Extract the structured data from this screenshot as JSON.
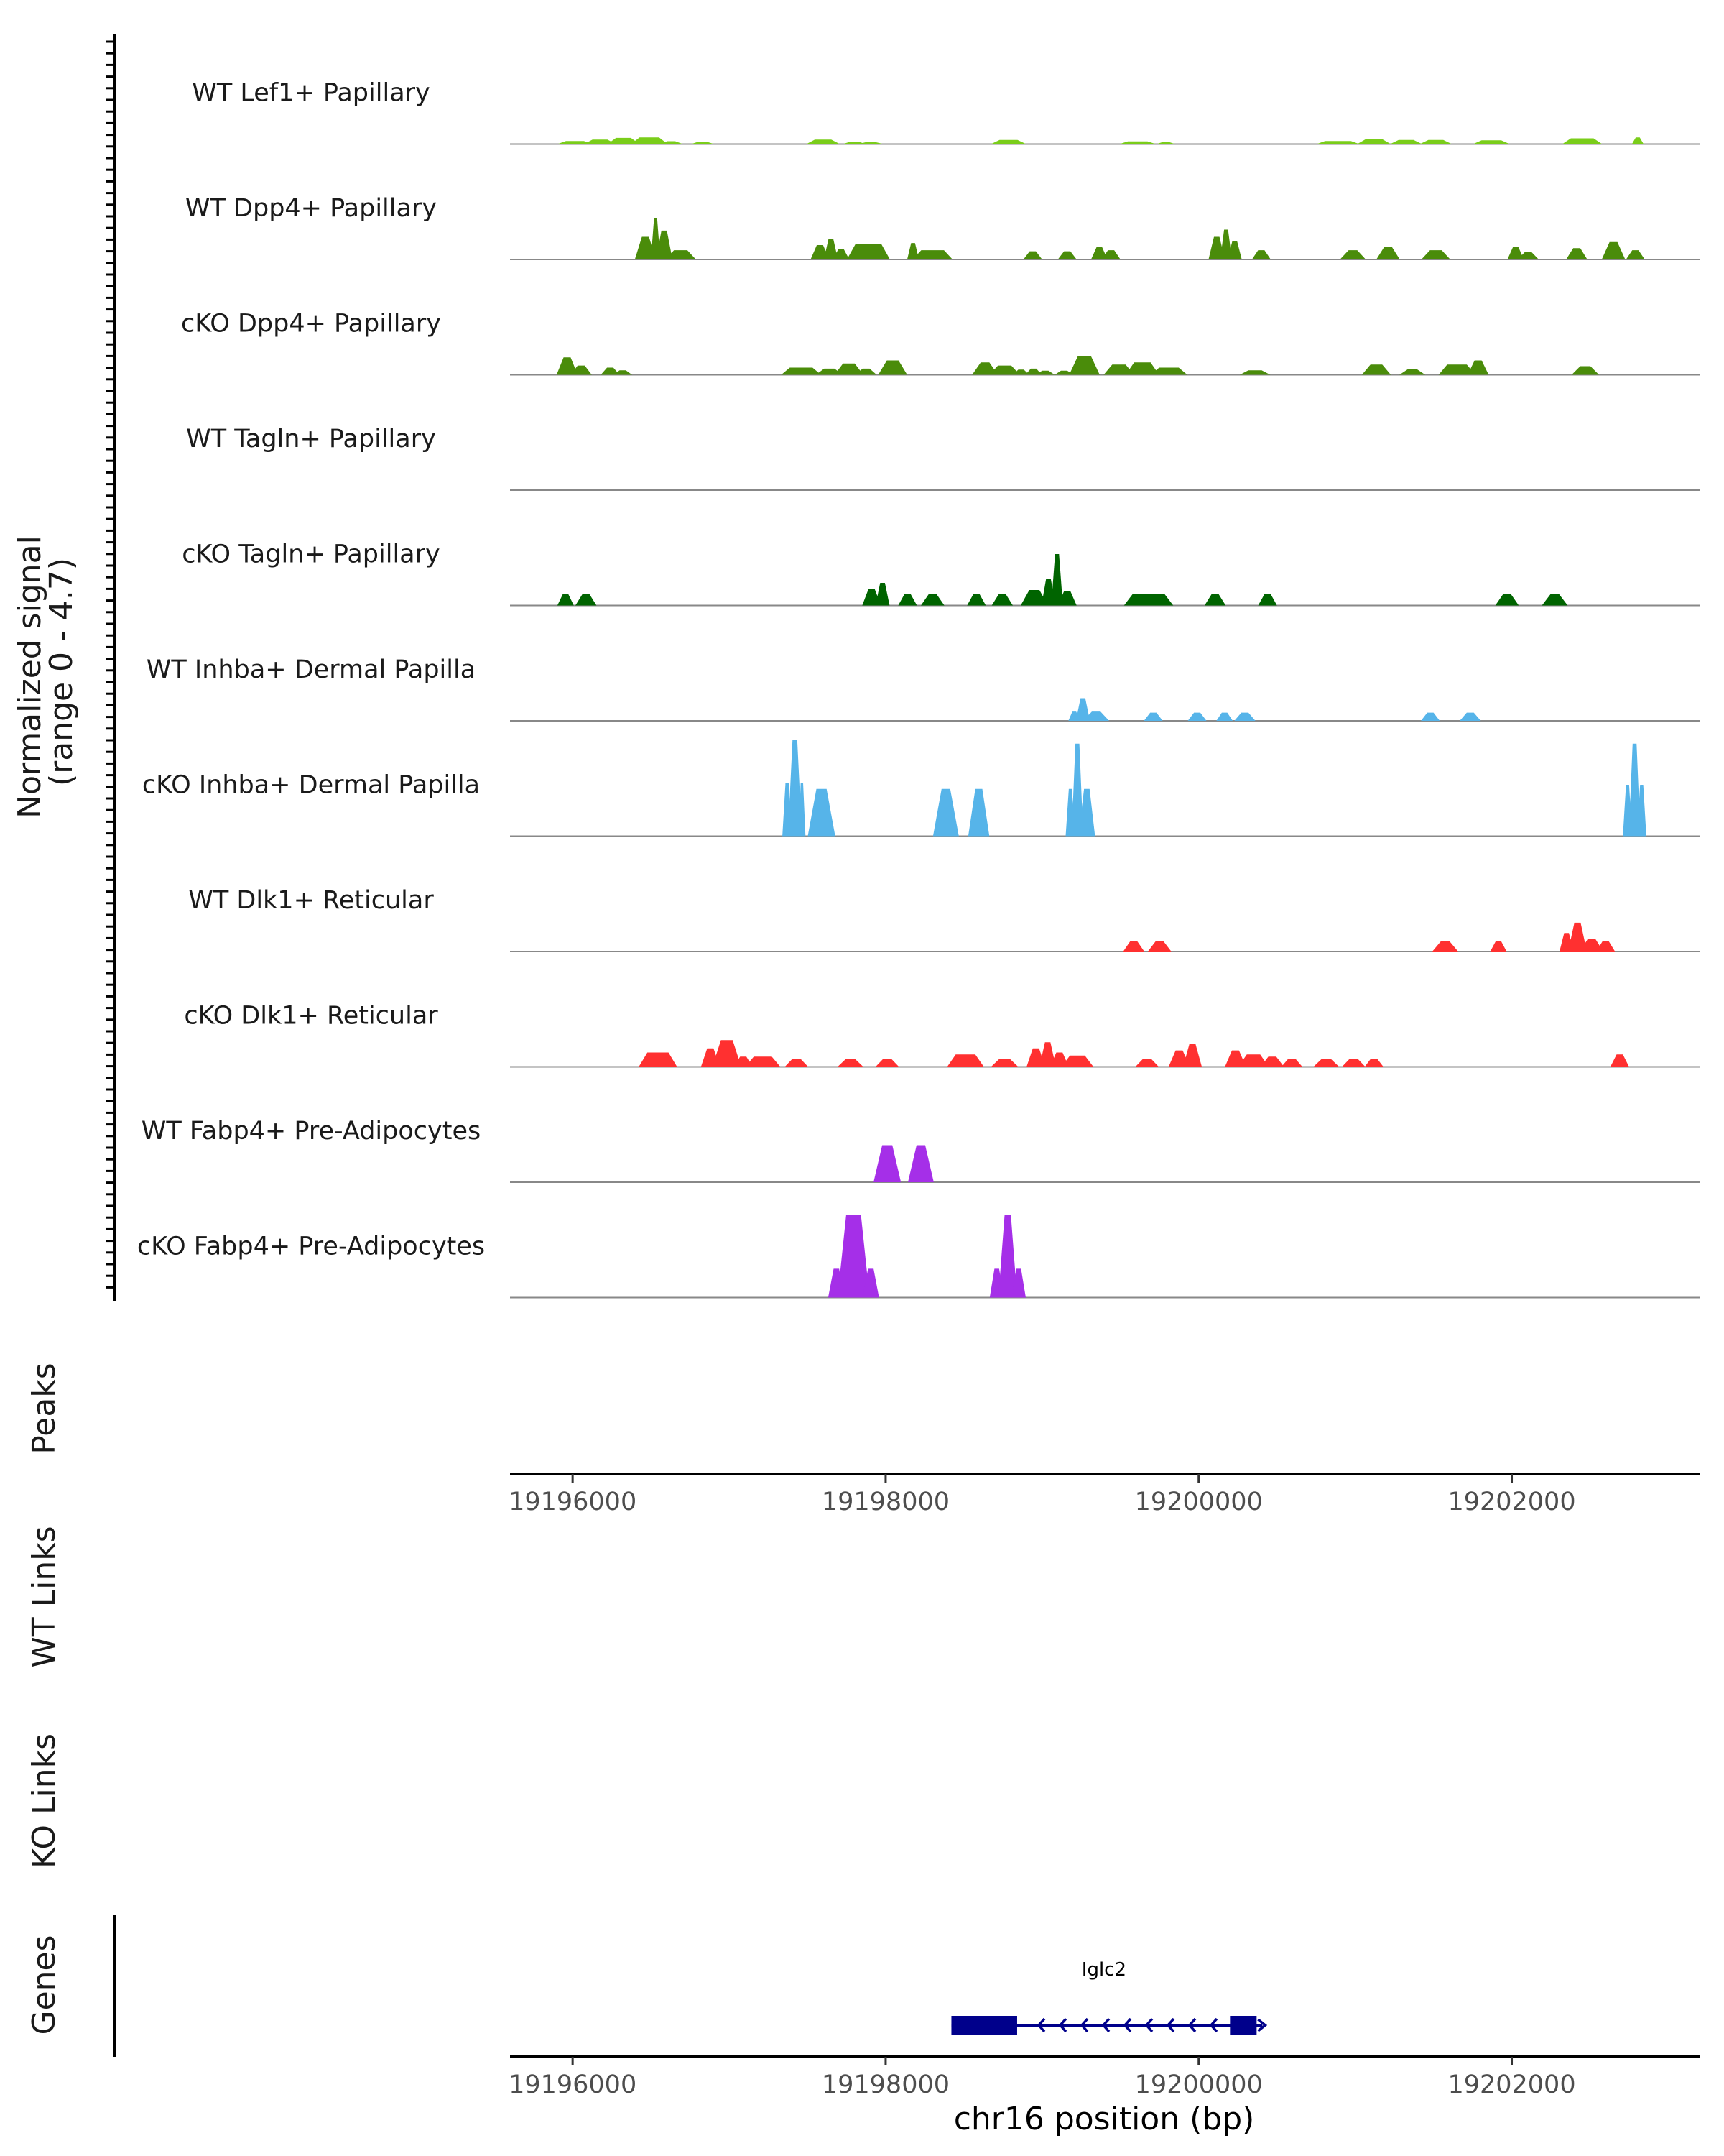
{
  "chart_data": {
    "type": "area",
    "title": "",
    "chromosome": "chr16",
    "xlabel": "chr16 position (bp)",
    "xlim": [
      19195600,
      19203200
    ],
    "xticks": [
      19196000,
      19198000,
      19200000,
      19202000
    ],
    "xtick_labels": [
      "19196000",
      "19198000",
      "19200000",
      "19202000"
    ],
    "coverage_axis_label": "Normalized signal\n(range 0 - 4.7)",
    "ylim": [
      0,
      4.7
    ],
    "panel_labels": {
      "peaks": "Peaks",
      "wt_links": "WT Links",
      "ko_links": "KO Links",
      "genes": "Genes"
    },
    "tracks": [
      {
        "name": "WT Lef1+ Papillary",
        "color": "#7acd1a",
        "segments": [
          [
            19195930,
            19196100,
            0.15
          ],
          [
            19196100,
            19196250,
            0.22
          ],
          [
            19196250,
            19196400,
            0.3
          ],
          [
            19196400,
            19196580,
            0.32
          ],
          [
            19196580,
            19196680,
            0.14
          ],
          [
            19196780,
            19196880,
            0.12
          ],
          [
            19197520,
            19197680,
            0.22
          ],
          [
            19197750,
            19197850,
            0.12
          ],
          [
            19197850,
            19197960,
            0.1
          ],
          [
            19198700,
            19198870,
            0.2
          ],
          [
            19199520,
            19199700,
            0.13
          ],
          [
            19199750,
            19199830,
            0.1
          ],
          [
            19200780,
            19201000,
            0.15
          ],
          [
            19201040,
            19201200,
            0.24
          ],
          [
            19201250,
            19201400,
            0.2
          ],
          [
            19201440,
            19201590,
            0.2
          ],
          [
            19201780,
            19201960,
            0.18
          ],
          [
            19202350,
            19202550,
            0.28
          ],
          [
            19202780,
            19202830,
            0.32
          ]
        ]
      },
      {
        "name": "WT Dpp4+ Papillary",
        "color": "#4a8c0a",
        "segments": [
          [
            19196420,
            19196510,
            1.1
          ],
          [
            19196510,
            19196550,
            2.0
          ],
          [
            19196550,
            19196620,
            1.4
          ],
          [
            19196620,
            19196760,
            0.45
          ],
          [
            19197540,
            19197620,
            0.7
          ],
          [
            19197620,
            19197680,
            1.0
          ],
          [
            19197680,
            19197750,
            0.5
          ],
          [
            19197780,
            19198000,
            0.75
          ],
          [
            19198150,
            19198200,
            0.8
          ],
          [
            19198200,
            19198400,
            0.45
          ],
          [
            19198900,
            19198980,
            0.4
          ],
          [
            19199120,
            19199200,
            0.4
          ],
          [
            19199330,
            19199400,
            0.6
          ],
          [
            19199400,
            19199480,
            0.45
          ],
          [
            19200080,
            19200150,
            1.1
          ],
          [
            19200150,
            19200200,
            1.45
          ],
          [
            19200200,
            19200260,
            0.9
          ],
          [
            19200360,
            19200440,
            0.45
          ],
          [
            19200930,
            19201040,
            0.45
          ],
          [
            19201160,
            19201260,
            0.6
          ],
          [
            19201450,
            19201580,
            0.45
          ],
          [
            19201990,
            19202060,
            0.6
          ],
          [
            19202060,
            19202150,
            0.35
          ],
          [
            19202370,
            19202460,
            0.55
          ],
          [
            19202600,
            19202700,
            0.85
          ],
          [
            19202750,
            19202830,
            0.45
          ]
        ]
      },
      {
        "name": "cKO Dpp4+ Papillary",
        "color": "#4a8c0a",
        "segments": [
          [
            19195920,
            19196010,
            0.85
          ],
          [
            19196010,
            19196100,
            0.45
          ],
          [
            19196200,
            19196280,
            0.35
          ],
          [
            19196280,
            19196360,
            0.22
          ],
          [
            19197360,
            19197560,
            0.35
          ],
          [
            19197580,
            19197700,
            0.3
          ],
          [
            19197700,
            19197830,
            0.55
          ],
          [
            19197830,
            19197920,
            0.3
          ],
          [
            19197980,
            19198110,
            0.7
          ],
          [
            19198580,
            19198690,
            0.6
          ],
          [
            19198690,
            19198830,
            0.45
          ],
          [
            19198830,
            19198900,
            0.25
          ],
          [
            19198910,
            19198980,
            0.3
          ],
          [
            19198980,
            19199060,
            0.2
          ],
          [
            19199100,
            19199180,
            0.2
          ],
          [
            19199200,
            19199340,
            0.9
          ],
          [
            19199420,
            19199560,
            0.5
          ],
          [
            19199560,
            19199720,
            0.6
          ],
          [
            19199720,
            19199900,
            0.35
          ],
          [
            19200290,
            19200430,
            0.22
          ],
          [
            19201070,
            19201200,
            0.5
          ],
          [
            19201310,
            19201420,
            0.28
          ],
          [
            19201560,
            19201740,
            0.5
          ],
          [
            19201740,
            19201830,
            0.7
          ],
          [
            19202410,
            19202530,
            0.42
          ]
        ]
      },
      {
        "name": "WT Tagln+ Papillary",
        "color": "#006400",
        "segments": []
      },
      {
        "name": "cKO Tagln+ Papillary",
        "color": "#006400",
        "segments": [
          [
            19195920,
            19195990,
            0.55
          ],
          [
            19196040,
            19196130,
            0.55
          ],
          [
            19197870,
            19197950,
            0.8
          ],
          [
            19197950,
            19198010,
            1.1
          ],
          [
            19198100,
            19198180,
            0.55
          ],
          [
            19198250,
            19198350,
            0.55
          ],
          [
            19198540,
            19198620,
            0.55
          ],
          [
            19198700,
            19198790,
            0.55
          ],
          [
            19198890,
            19199010,
            0.75
          ],
          [
            19199010,
            19199070,
            1.3
          ],
          [
            19199070,
            19199120,
            2.5
          ],
          [
            19199120,
            19199200,
            0.7
          ],
          [
            19199550,
            19199810,
            0.55
          ],
          [
            19200060,
            19200150,
            0.55
          ],
          [
            19200400,
            19200480,
            0.55
          ],
          [
            19201920,
            19202020,
            0.55
          ],
          [
            19202220,
            19202330,
            0.55
          ]
        ]
      },
      {
        "name": "WT Inhba+ Dermal Papilla",
        "color": "#56b4e9",
        "segments": [
          [
            19199180,
            19199230,
            0.45
          ],
          [
            19199230,
            19199290,
            1.1
          ],
          [
            19199290,
            19199400,
            0.45
          ],
          [
            19199670,
            19199750,
            0.4
          ],
          [
            19199950,
            19200030,
            0.4
          ],
          [
            19200130,
            19200200,
            0.4
          ],
          [
            19200250,
            19200340,
            0.4
          ],
          [
            19201440,
            19201520,
            0.4
          ],
          [
            19201690,
            19201780,
            0.4
          ]
        ]
      },
      {
        "name": "cKO Inhba+ Dermal Papilla",
        "color": "#56b4e9",
        "segments": [
          [
            19197350,
            19197390,
            2.6
          ],
          [
            19197390,
            19197450,
            4.7
          ],
          [
            19197450,
            19197480,
            2.6
          ],
          [
            19197530,
            19197650,
            2.3
          ],
          [
            19198330,
            19198440,
            2.3
          ],
          [
            19198550,
            19198640,
            2.3
          ],
          [
            19199160,
            19199200,
            2.3
          ],
          [
            19199200,
            19199250,
            4.5
          ],
          [
            19199250,
            19199320,
            2.3
          ],
          [
            19202720,
            19202760,
            2.5
          ],
          [
            19202760,
            19202810,
            4.5
          ],
          [
            19202810,
            19202850,
            2.5
          ]
        ]
      },
      {
        "name": "WT Dlk1+ Reticular",
        "color": "#ff3030",
        "segments": [
          [
            19199540,
            19199630,
            0.5
          ],
          [
            19199700,
            19199800,
            0.5
          ],
          [
            19201520,
            19201630,
            0.5
          ],
          [
            19201880,
            19201950,
            0.5
          ],
          [
            19202320,
            19202380,
            0.9
          ],
          [
            19202380,
            19202460,
            1.4
          ],
          [
            19202460,
            19202560,
            0.6
          ],
          [
            19202560,
            19202640,
            0.5
          ]
        ]
      },
      {
        "name": "cKO Dlk1+ Reticular",
        "color": "#ff3030",
        "segments": [
          [
            19196450,
            19196640,
            0.7
          ],
          [
            19196840,
            19196920,
            0.9
          ],
          [
            19196920,
            19197050,
            1.3
          ],
          [
            19197050,
            19197130,
            0.5
          ],
          [
            19197130,
            19197300,
            0.5
          ],
          [
            19197380,
            19197480,
            0.4
          ],
          [
            19197720,
            19197830,
            0.4
          ],
          [
            19197960,
            19198060,
            0.4
          ],
          [
            19198420,
            19198600,
            0.6
          ],
          [
            19198700,
            19198820,
            0.4
          ],
          [
            19198920,
            19199000,
            0.9
          ],
          [
            19199000,
            19199070,
            1.2
          ],
          [
            19199070,
            19199150,
            0.7
          ],
          [
            19199150,
            19199300,
            0.55
          ],
          [
            19199620,
            19199720,
            0.4
          ],
          [
            19199830,
            19199920,
            0.8
          ],
          [
            19199920,
            19200000,
            1.1
          ],
          [
            19200190,
            19200280,
            0.8
          ],
          [
            19200280,
            19200420,
            0.6
          ],
          [
            19200420,
            19200520,
            0.5
          ],
          [
            19200550,
            19200640,
            0.4
          ],
          [
            19200760,
            19200870,
            0.4
          ],
          [
            19200940,
            19201040,
            0.4
          ],
          [
            19201080,
            19201160,
            0.4
          ],
          [
            19202650,
            19202730,
            0.6
          ]
        ]
      },
      {
        "name": "WT Fabp4+ Pre-Adipocytes",
        "color": "#a52fe8",
        "segments": [
          [
            19197950,
            19198070,
            1.8
          ],
          [
            19198170,
            19198280,
            1.8
          ]
        ]
      },
      {
        "name": "cKO Fabp4+ Pre-Adipocytes",
        "color": "#a52fe8",
        "segments": [
          [
            19197650,
            19197720,
            1.4
          ],
          [
            19197720,
            19197870,
            4.0
          ],
          [
            19197870,
            19197940,
            1.4
          ],
          [
            19198680,
            19198740,
            1.4
          ],
          [
            19198740,
            19198820,
            4.0
          ],
          [
            19198820,
            19198880,
            1.4
          ]
        ]
      }
    ],
    "genes": [
      {
        "name": "Iglc2",
        "start": 19198420,
        "end": 19200370,
        "strand": "-",
        "color": "#00008b",
        "exons": [
          [
            19198420,
            19198840
          ],
          [
            19200200,
            19200370
          ]
        ]
      }
    ]
  }
}
